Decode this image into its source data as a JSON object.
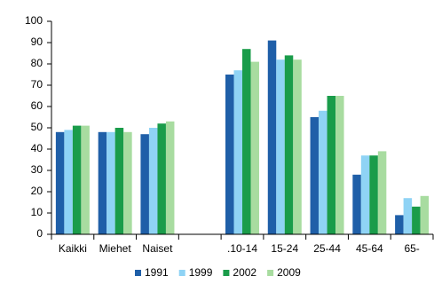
{
  "chart_data": {
    "type": "bar",
    "categories": [
      "Kaikki",
      "Miehet",
      "Naiset",
      null,
      ".10-14",
      "15-24",
      "25-44",
      "45-64",
      "65-"
    ],
    "series": [
      {
        "name": "1991",
        "color": "#1f5fa8",
        "values": [
          48,
          48,
          47,
          null,
          75,
          91,
          55,
          28,
          9
        ]
      },
      {
        "name": "1999",
        "color": "#8fd3f5",
        "values": [
          49,
          48,
          50,
          null,
          77,
          82,
          58,
          37,
          17
        ]
      },
      {
        "name": "2002",
        "color": "#1a9c4a",
        "values": [
          51,
          50,
          52,
          null,
          87,
          84,
          65,
          37,
          13
        ]
      },
      {
        "name": "2009",
        "color": "#a8dca0",
        "values": [
          51,
          48,
          53,
          null,
          81,
          82,
          65,
          39,
          18
        ]
      }
    ],
    "ylim": [
      0,
      100
    ],
    "yticks": [
      0,
      10,
      20,
      30,
      40,
      50,
      60,
      70,
      80,
      90,
      100
    ],
    "grid": false,
    "legend": "bottom"
  }
}
